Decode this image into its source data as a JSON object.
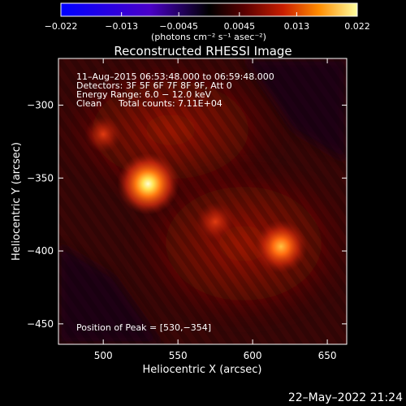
{
  "chart_data": {
    "type": "heatmap",
    "title": "Reconstructed RHESSI Image",
    "xlabel": "Heliocentric X (arcsec)",
    "ylabel": "Heliocentric Y (arcsec)",
    "xlim": [
      470,
      663
    ],
    "ylim": [
      -464,
      -268
    ],
    "x_ticks": [
      500,
      550,
      600,
      650
    ],
    "y_ticks": [
      -300,
      -350,
      -400,
      -450
    ],
    "x_tick_labels": [
      "500",
      "550",
      "600",
      "650"
    ],
    "y_tick_labels": [
      "−300",
      "−350",
      "−400",
      "−450"
    ],
    "colorbar": {
      "min": -0.022,
      "max": 0.022,
      "ticks": [
        -0.022,
        -0.013,
        -0.0045,
        0.0045,
        0.013,
        0.022
      ],
      "tick_labels": [
        "−0.022",
        "−0.013",
        "−0.0045",
        "0.0045",
        "0.013",
        "0.022"
      ],
      "units_label": "(photons cm⁻² s⁻¹ asec⁻²)"
    },
    "annotations": {
      "time_range": "11–Aug–2015 06:53:48.000 to 06:59:48.000",
      "detectors": "Detectors: 3F 5F 6F 7F 8F 9F, Att 0",
      "energy_range": "Energy Range: 6.0 − 12.0 keV",
      "method": "Clean",
      "total_counts": "Total counts: 7.11E+04",
      "peak_position": "Position of Peak = [530,−354]"
    },
    "sources": [
      {
        "x": 530,
        "y": -354,
        "intensity": 0.022
      },
      {
        "x": 619,
        "y": -397,
        "intensity": 0.017
      },
      {
        "x": 575,
        "y": -380,
        "intensity": 0.009
      },
      {
        "x": 500,
        "y": -320,
        "intensity": 0.008
      }
    ],
    "grid": false
  },
  "footer": {
    "date": "22–May–2022 21:24"
  },
  "colors": {
    "background": "#000000",
    "text": "#ffffff"
  }
}
